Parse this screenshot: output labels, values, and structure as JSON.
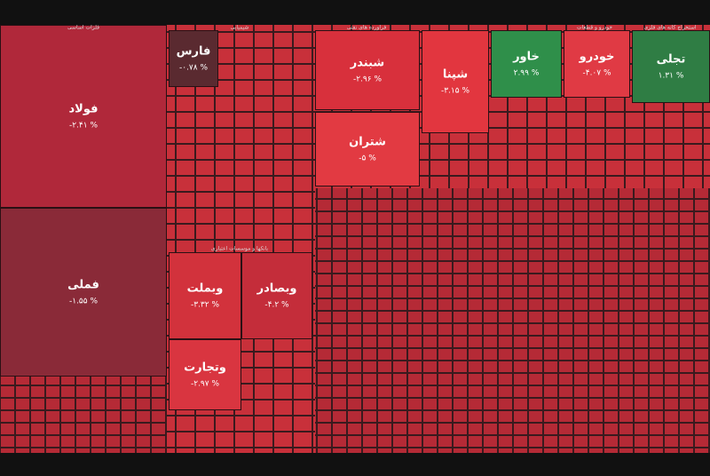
{
  "chart_data": {
    "type": "treemap",
    "sectors": [
      "فلزات اساسی",
      "شیمیایی",
      "فراورده های نفتی",
      "خودرو و قطعات",
      "استخراج کانه های فلزی",
      "بانکها و موسسات اعتباری"
    ],
    "tiles": {
      "names": [
        "فولاد",
        "فملی",
        "فارس",
        "وبملت",
        "وبصادر",
        "وتجارت",
        "شبندر",
        "شپنا",
        "شتران",
        "خاور",
        "خودرو",
        "تجلی"
      ],
      "values": [
        -2.41,
        -1.55,
        -0.78,
        -3.32,
        -4.2,
        -2.97,
        -2.96,
        -3.15,
        -5,
        2.99,
        -4.07,
        1.31
      ],
      "value_labels": [
        "-۲.۴۱ %",
        "-۱.۵۵ %",
        "-۰.۷۸ %",
        "-۳.۳۲ %",
        "-۴.۲ %",
        "-۲.۹۷ %",
        "-۲.۹۶ %",
        "-۳.۱۵ %",
        "-۵ %",
        "۲.۹۹ %",
        "-۴.۰۷ %",
        "۱.۳۱ %"
      ],
      "colors": [
        "#b0283a",
        "#8a2a38",
        "#5a2a30",
        "#d2323c",
        "#c42d3a",
        "#d93540",
        "#d8303c",
        "#e2363f",
        "#e23a42",
        "#2f8f4a",
        "#e03a44",
        "#2f7d44"
      ]
    }
  }
}
